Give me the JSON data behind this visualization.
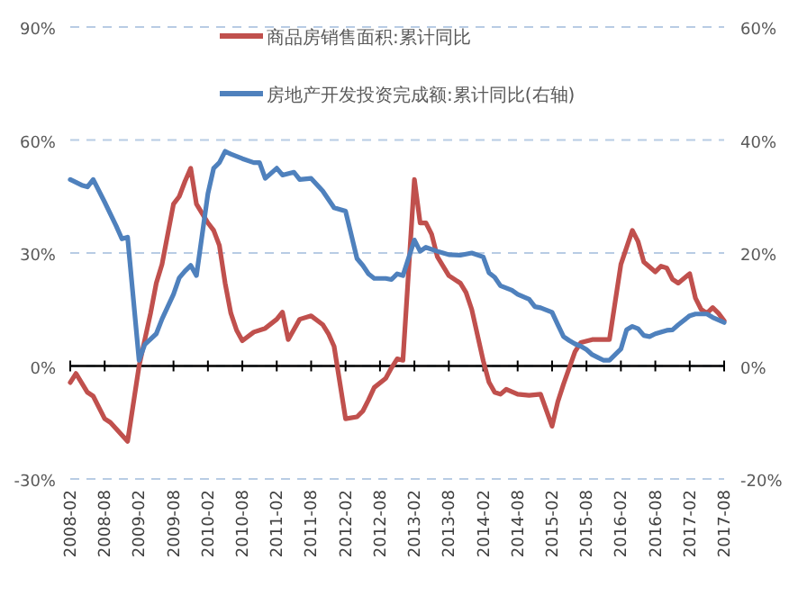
{
  "chart_data": {
    "type": "line",
    "xlim": [
      "2008-02",
      "2017-08"
    ],
    "xticks": [
      {
        "value": "2008-02",
        "label": "2008-02"
      },
      {
        "value": "2008-08",
        "label": "2008-08"
      },
      {
        "value": "2009-02",
        "label": "2009-02"
      },
      {
        "value": "2009-08",
        "label": "2009-08"
      },
      {
        "value": "2010-02",
        "label": "2010-02"
      },
      {
        "value": "2010-08",
        "label": "2010-08"
      },
      {
        "value": "2011-02",
        "label": "2011-02"
      },
      {
        "value": "2011-08",
        "label": "2011-08"
      },
      {
        "value": "2012-02",
        "label": "2012-02"
      },
      {
        "value": "2012-08",
        "label": "2012-08"
      },
      {
        "value": "2013-02",
        "label": "2013-02"
      },
      {
        "value": "2013-08",
        "label": "2013-08"
      },
      {
        "value": "2014-02",
        "label": "2014-02"
      },
      {
        "value": "2014-08",
        "label": "2014-08"
      },
      {
        "value": "2015-02",
        "label": "2015-02"
      },
      {
        "value": "2015-08",
        "label": "2015-08"
      },
      {
        "value": "2016-02",
        "label": "2016-02"
      },
      {
        "value": "2016-08",
        "label": "2016-08"
      },
      {
        "value": "2017-02",
        "label": "2017-02"
      },
      {
        "value": "2017-08",
        "label": "2017-08"
      }
    ],
    "ylim": [
      -30,
      90
    ],
    "yticks": [
      {
        "value": -30,
        "label": "-30%"
      },
      {
        "value": 0,
        "label": "0%"
      },
      {
        "value": 30,
        "label": "30%"
      },
      {
        "value": 60,
        "label": "60%"
      },
      {
        "value": 90,
        "label": "90%"
      }
    ],
    "y2lim": [
      -20,
      60
    ],
    "y2ticks": [
      {
        "value": -20,
        "label": "-20%"
      },
      {
        "value": 0,
        "label": "0%"
      },
      {
        "value": 20,
        "label": "20%"
      },
      {
        "value": 40,
        "label": "40%"
      },
      {
        "value": 60,
        "label": "60%"
      }
    ],
    "grid": "y",
    "legend": "top",
    "series": [
      {
        "name": "商品房销售面积:累计同比",
        "color": "#c0504d",
        "x": [
          "2008-02",
          "2008-03",
          "2008-05",
          "2008-06",
          "2008-08",
          "2008-09",
          "2008-12",
          "2009-02",
          "2009-04",
          "2009-05",
          "2009-06",
          "2009-08",
          "2009-09",
          "2009-10",
          "2009-11",
          "2009-12",
          "2010-02",
          "2010-03",
          "2010-04",
          "2010-05",
          "2010-06",
          "2010-07",
          "2010-08",
          "2010-10",
          "2010-12",
          "2011-02",
          "2011-03",
          "2011-04",
          "2011-06",
          "2011-08",
          "2011-10",
          "2011-11",
          "2011-12",
          "2012-02",
          "2012-04",
          "2012-05",
          "2012-06",
          "2012-07",
          "2012-09",
          "2012-10",
          "2012-11",
          "2012-12",
          "2013-02",
          "2013-03",
          "2013-04",
          "2013-05",
          "2013-06",
          "2013-08",
          "2013-10",
          "2013-11",
          "2013-12",
          "2014-02",
          "2014-03",
          "2014-04",
          "2014-05",
          "2014-06",
          "2014-08",
          "2014-10",
          "2014-12",
          "2015-02",
          "2015-03",
          "2015-04",
          "2015-06",
          "2015-07",
          "2015-09",
          "2015-12",
          "2016-01",
          "2016-02",
          "2016-04",
          "2016-05",
          "2016-06",
          "2016-08",
          "2016-09",
          "2016-10",
          "2016-11",
          "2016-12",
          "2017-02",
          "2017-03",
          "2017-04",
          "2017-05",
          "2017-06",
          "2017-07",
          "2017-08"
        ],
        "values": [
          -4.4,
          -2,
          -7,
          -8,
          -14,
          -15,
          -20,
          0,
          14,
          22,
          27,
          43,
          45,
          49,
          52.5,
          43,
          38,
          36,
          32,
          22,
          14,
          9.5,
          6.7,
          9,
          10,
          12.4,
          14.3,
          7,
          12.4,
          13.3,
          11,
          8.6,
          5.2,
          -14,
          -13.5,
          -12,
          -9,
          -5.7,
          -3.3,
          -0.5,
          1.9,
          1.5,
          49.5,
          38,
          38,
          35,
          29,
          24,
          22,
          19.5,
          15,
          1.4,
          -4.3,
          -7,
          -7.5,
          -6.2,
          -7.5,
          -7.8,
          -7.5,
          -16,
          -9.5,
          -4.8,
          3.8,
          6.2,
          7,
          7,
          17,
          27,
          36,
          33,
          27.6,
          25,
          26.5,
          26,
          23,
          22,
          24.5,
          18,
          15,
          14,
          15.5,
          14,
          12
        ]
      },
      {
        "name": "房地产开发投资完成额:累计同比(右轴)",
        "color": "#4f81bd",
        "axis": "y2",
        "x": [
          "2008-02",
          "2008-04",
          "2008-05",
          "2008-06",
          "2008-08",
          "2008-10",
          "2008-11",
          "2008-12",
          "2009-02",
          "2009-03",
          "2009-05",
          "2009-06",
          "2009-07",
          "2009-08",
          "2009-09",
          "2009-10",
          "2009-11",
          "2009-12",
          "2010-02",
          "2010-03",
          "2010-04",
          "2010-05",
          "2010-06",
          "2010-08",
          "2010-10",
          "2010-11",
          "2010-12",
          "2011-02",
          "2011-03",
          "2011-05",
          "2011-06",
          "2011-08",
          "2011-10",
          "2011-12",
          "2012-02",
          "2012-04",
          "2012-05",
          "2012-06",
          "2012-07",
          "2012-09",
          "2012-10",
          "2012-11",
          "2012-12",
          "2013-02",
          "2013-03",
          "2013-04",
          "2013-06",
          "2013-07",
          "2013-08",
          "2013-10",
          "2013-12",
          "2014-02",
          "2014-03",
          "2014-04",
          "2014-05",
          "2014-07",
          "2014-08",
          "2014-10",
          "2014-11",
          "2014-12",
          "2015-02",
          "2015-03",
          "2015-04",
          "2015-05",
          "2015-06",
          "2015-07",
          "2015-08",
          "2015-09",
          "2015-10",
          "2015-11",
          "2015-12",
          "2016-02",
          "2016-03",
          "2016-04",
          "2016-05",
          "2016-06",
          "2016-07",
          "2016-08",
          "2016-10",
          "2016-11",
          "2016-12",
          "2017-02",
          "2017-03",
          "2017-05",
          "2017-06",
          "2017-08"
        ],
        "values": [
          33,
          32,
          31.7,
          33,
          29,
          24.8,
          22.5,
          22.8,
          1,
          3.8,
          5.7,
          8.3,
          10.5,
          12.7,
          15.6,
          16.8,
          17.8,
          16,
          30.5,
          35,
          36,
          38,
          37.5,
          36.7,
          36,
          36,
          33.2,
          35,
          33.8,
          34.3,
          33,
          33.2,
          31,
          28,
          27.4,
          19,
          17.8,
          16.3,
          15.5,
          15.5,
          15.3,
          16.3,
          16,
          22.3,
          20.3,
          21,
          20.3,
          20,
          19.7,
          19.6,
          20,
          19.3,
          16.5,
          15.7,
          14.2,
          13.4,
          12.7,
          11.8,
          10.5,
          10.3,
          9.5,
          7.3,
          5.2,
          4.5,
          3.9,
          3.5,
          2.9,
          2,
          1.5,
          1,
          1,
          3,
          6.4,
          7,
          6.6,
          5.4,
          5.2,
          5.7,
          6.3,
          6.4,
          7.3,
          8.9,
          9.2,
          9.2,
          8.6,
          7.7
        ]
      }
    ]
  }
}
